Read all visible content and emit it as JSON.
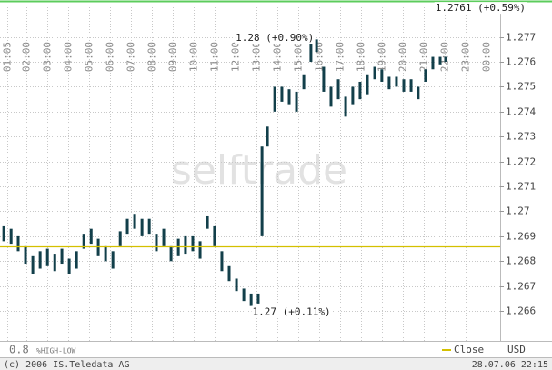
{
  "chart_data": {
    "type": "hilo",
    "watermark": "selftrade",
    "x": [
      0.91,
      1.26,
      1.6,
      1.95,
      2.3,
      2.65,
      3.0,
      3.35,
      3.69,
      4.04,
      4.39,
      4.74,
      5.09,
      5.43,
      5.78,
      6.13,
      6.48,
      6.82,
      7.17,
      7.52,
      7.87,
      8.21,
      8.56,
      8.91,
      9.26,
      9.6,
      9.95,
      10.3,
      10.65,
      10.99,
      11.34,
      11.69,
      12.04,
      12.39,
      12.74,
      13.08,
      13.26,
      13.52,
      13.87,
      14.21,
      14.56,
      14.91,
      15.26,
      15.6,
      15.87,
      16.21,
      16.56,
      16.91,
      17.26,
      17.6,
      17.95,
      18.3,
      18.65,
      18.99,
      19.34,
      19.69,
      20.04,
      20.39,
      20.73,
      21.08,
      21.43,
      21.78,
      22.04
    ],
    "low": [
      1.2688,
      1.2687,
      1.2684,
      1.2679,
      1.2675,
      1.2677,
      1.2678,
      1.2676,
      1.2679,
      1.2675,
      1.2677,
      1.2685,
      1.2687,
      1.2682,
      1.268,
      1.2677,
      1.2686,
      1.2691,
      1.2693,
      1.269,
      1.2691,
      1.2684,
      1.2686,
      1.268,
      1.2682,
      1.2683,
      1.2684,
      1.2681,
      1.2693,
      1.2686,
      1.2676,
      1.2672,
      1.2668,
      1.2664,
      1.2662,
      1.2663,
      1.269,
      1.2726,
      1.274,
      1.2744,
      1.2743,
      1.274,
      1.2749,
      1.276,
      1.2764,
      1.2748,
      1.2742,
      1.2745,
      1.2738,
      1.2743,
      1.2745,
      1.2747,
      1.2753,
      1.2752,
      1.2749,
      1.275,
      1.2748,
      1.2748,
      1.2745,
      1.2752,
      1.2757,
      1.2759,
      1.276
    ],
    "high": [
      1.2694,
      1.2693,
      1.269,
      1.2686,
      1.2682,
      1.2684,
      1.2685,
      1.2683,
      1.2685,
      1.2681,
      1.2684,
      1.2691,
      1.2693,
      1.2689,
      1.2686,
      1.2684,
      1.2692,
      1.2697,
      1.2699,
      1.2697,
      1.2697,
      1.2691,
      1.2693,
      1.2686,
      1.2689,
      1.269,
      1.269,
      1.2688,
      1.2698,
      1.2694,
      1.2684,
      1.2678,
      1.2673,
      1.2669,
      1.2667,
      1.2667,
      1.2726,
      1.2734,
      1.275,
      1.275,
      1.2749,
      1.2748,
      1.2755,
      1.2768,
      1.2769,
      1.2758,
      1.275,
      1.2753,
      1.2746,
      1.275,
      1.2752,
      1.2755,
      1.2758,
      1.2757,
      1.2754,
      1.2754,
      1.2753,
      1.2753,
      1.275,
      1.2757,
      1.2762,
      1.2762,
      1.2762
    ],
    "color": "#123f4a",
    "close": {
      "name": "Close",
      "value": 1.2686,
      "color": "#d4c000"
    },
    "annotations": [
      {
        "text": "1.2761 (+0.59%)",
        "x": 21.55,
        "y": 1.27815
      },
      {
        "text": "1.28 (+0.90%)",
        "x": 12.0,
        "y": 1.27695
      },
      {
        "text": "1.27 (+0.11%)",
        "x": 12.8,
        "y": 1.26595
      }
    ],
    "xlim": [
      0.73,
      24.65
    ],
    "ylim": [
      1.2648,
      1.2783
    ],
    "xticks": [
      {
        "value": 1.0833,
        "label": "01:05"
      },
      {
        "value": 2,
        "label": "02:00"
      },
      {
        "value": 3,
        "label": "03:00"
      },
      {
        "value": 4,
        "label": "04:00"
      },
      {
        "value": 5,
        "label": "05:00"
      },
      {
        "value": 6,
        "label": "06:00"
      },
      {
        "value": 7,
        "label": "07:00"
      },
      {
        "value": 8,
        "label": "08:00"
      },
      {
        "value": 9,
        "label": "09:00"
      },
      {
        "value": 10,
        "label": "10:00"
      },
      {
        "value": 11,
        "label": "11:00"
      },
      {
        "value": 12,
        "label": "12:00"
      },
      {
        "value": 13,
        "label": "13:00"
      },
      {
        "value": 14,
        "label": "14:00"
      },
      {
        "value": 15,
        "label": "15:00"
      },
      {
        "value": 16,
        "label": "16:00"
      },
      {
        "value": 17,
        "label": "17:00"
      },
      {
        "value": 18,
        "label": "18:00"
      },
      {
        "value": 19,
        "label": "19:00"
      },
      {
        "value": 20,
        "label": "20:00"
      },
      {
        "value": 21,
        "label": "21:00"
      },
      {
        "value": 22,
        "label": "22:00"
      },
      {
        "value": 23,
        "label": "23:00"
      },
      {
        "value": 24,
        "label": "00:00"
      }
    ],
    "yticks": [
      1.266,
      1.267,
      1.268,
      1.269,
      1.27,
      1.271,
      1.272,
      1.273,
      1.274,
      1.275,
      1.276,
      1.277
    ],
    "grid": true,
    "scale_value": "0.8",
    "scale_label": "%HIGH-LOW",
    "currency": "USD",
    "copyright": "(c) 2006 IS.Teledata AG",
    "timestamp": "28.07.06 22:15"
  }
}
